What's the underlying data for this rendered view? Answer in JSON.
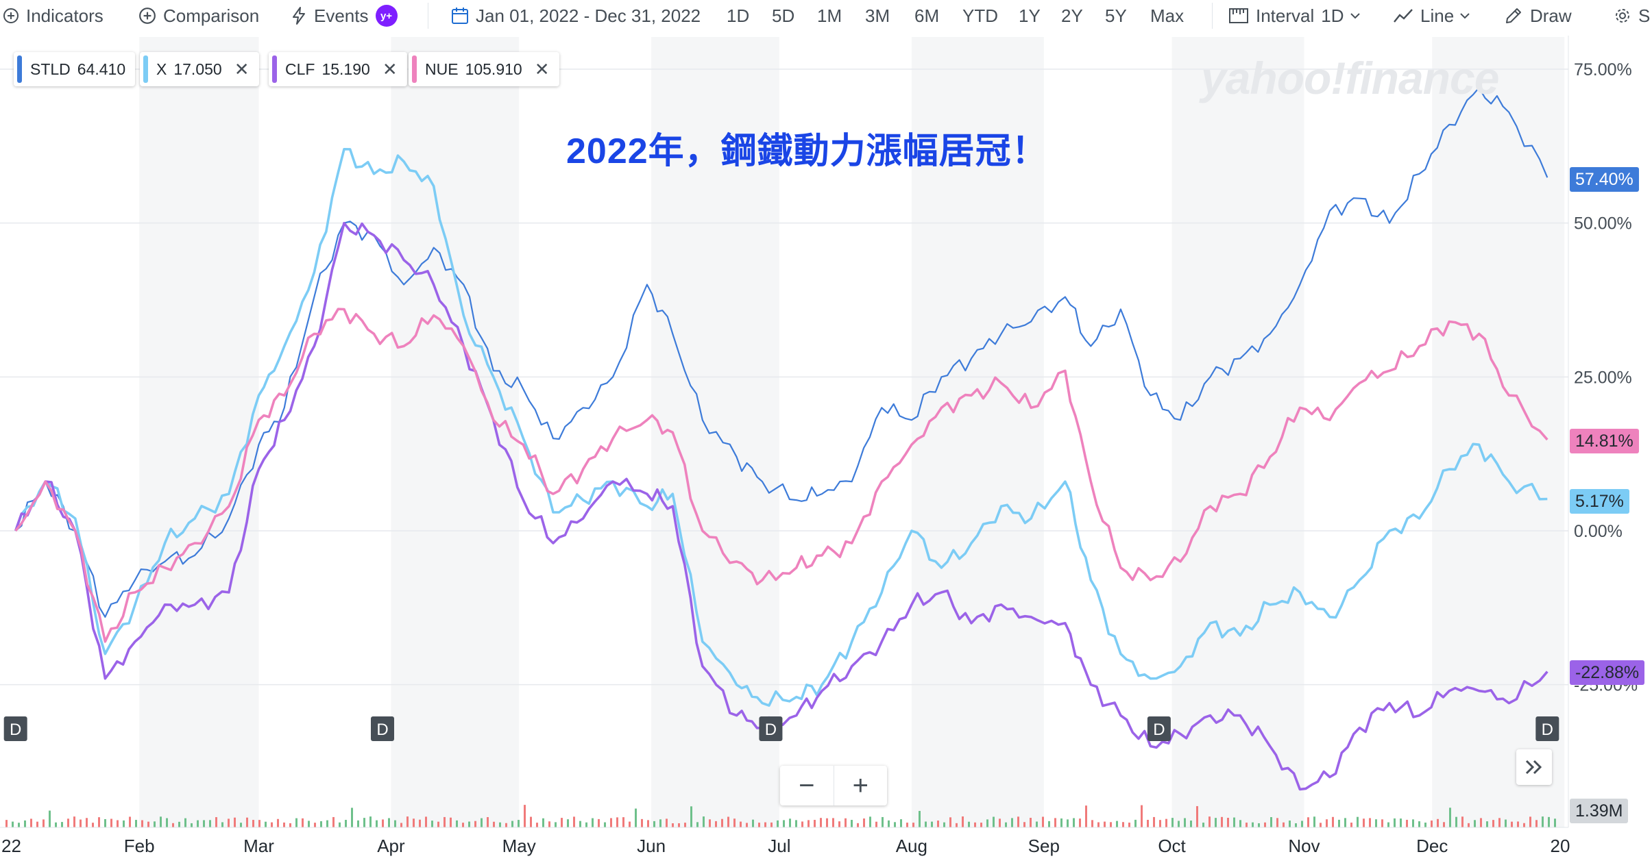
{
  "toolbar": {
    "indicators_label": "Indicators",
    "comparison_label": "Comparison",
    "events_label": "Events",
    "events_badge": "y+",
    "date_range": "Jan 01, 2022 - Dec 31, 2022",
    "ranges": [
      "1D",
      "5D",
      "1M",
      "3M",
      "6M",
      "YTD",
      "1Y",
      "2Y",
      "5Y",
      "Max"
    ],
    "interval_label": "Interval",
    "interval_value": "1D",
    "chart_type_label": "Line",
    "draw_label": "Draw",
    "settings_label": "S"
  },
  "legend": [
    {
      "symbol": "STLD",
      "value": "64.410",
      "color": "#3d7bd9",
      "closable": false
    },
    {
      "symbol": "X",
      "value": "17.050",
      "color": "#7cccf5",
      "closable": true
    },
    {
      "symbol": "CLF",
      "value": "15.190",
      "color": "#9b63e8",
      "closable": true
    },
    {
      "symbol": "NUE",
      "value": "105.910",
      "color": "#ee82bd",
      "closable": true
    }
  ],
  "annotation": "2022年，鋼鐵動力漲幅居冠！",
  "watermark": "yahoo!finance",
  "zoom": {
    "minus": "−",
    "plus": "+"
  },
  "value_tags": [
    {
      "label": "57.40%",
      "bg": "#3d7bd9",
      "fg": "#ffffff"
    },
    {
      "label": "14.81%",
      "bg": "#ee82bd",
      "fg": "#232a31"
    },
    {
      "label": "5.17%",
      "bg": "#7cccf5",
      "fg": "#232a31"
    },
    {
      "label": "-22.88%",
      "bg": "#9b63e8",
      "fg": "#232a31"
    },
    {
      "label": "1.39M",
      "bg": "#d3d7db",
      "fg": "#232a31"
    }
  ],
  "chart_data": {
    "type": "line",
    "title": "",
    "ylabel": "",
    "xlabel": "",
    "y_unit": "%",
    "ylim": [
      -47,
      75
    ],
    "y_ticks": [
      75,
      50,
      25,
      0,
      -25
    ],
    "y_tick_labels": [
      "75.00%",
      "50.00%",
      "25.00%",
      "0.00%",
      "-25.00%"
    ],
    "x_tick_labels": [
      "22",
      "Feb",
      "Mar",
      "Apr",
      "May",
      "Jun",
      "Jul",
      "Aug",
      "Sep",
      "Oct",
      "Nov",
      "Dec",
      "20"
    ],
    "x": [
      "2022-01-03",
      "2022-01-10",
      "2022-01-17",
      "2022-01-24",
      "2022-01-31",
      "2022-02-07",
      "2022-02-14",
      "2022-02-22",
      "2022-03-01",
      "2022-03-07",
      "2022-03-14",
      "2022-03-21",
      "2022-03-28",
      "2022-04-04",
      "2022-04-11",
      "2022-04-18",
      "2022-04-25",
      "2022-05-02",
      "2022-05-09",
      "2022-05-16",
      "2022-05-23",
      "2022-05-31",
      "2022-06-06",
      "2022-06-13",
      "2022-06-21",
      "2022-06-27",
      "2022-07-05",
      "2022-07-11",
      "2022-07-18",
      "2022-07-25",
      "2022-08-01",
      "2022-08-08",
      "2022-08-15",
      "2022-08-22",
      "2022-08-29",
      "2022-09-06",
      "2022-09-12",
      "2022-09-19",
      "2022-09-26",
      "2022-10-03",
      "2022-10-10",
      "2022-10-17",
      "2022-10-24",
      "2022-10-31",
      "2022-11-07",
      "2022-11-14",
      "2022-11-21",
      "2022-11-28",
      "2022-12-05",
      "2022-12-12",
      "2022-12-19",
      "2022-12-28"
    ],
    "series": [
      {
        "name": "STLD",
        "color": "#3d7bd9",
        "values": [
          0,
          8,
          0,
          -14,
          -8,
          -5,
          -4,
          2,
          14,
          20,
          38,
          50,
          48,
          40,
          46,
          40,
          26,
          23,
          15,
          20,
          25,
          40,
          32,
          18,
          12,
          8,
          5,
          6,
          8,
          20,
          18,
          25,
          28,
          32,
          34,
          38,
          30,
          36,
          22,
          18,
          25,
          28,
          32,
          40,
          52,
          54,
          50,
          58,
          66,
          72,
          68,
          57.4
        ]
      },
      {
        "name": "X",
        "color": "#7cccf5",
        "values": [
          0,
          8,
          2,
          -20,
          -12,
          -2,
          2,
          6,
          22,
          30,
          42,
          62,
          58,
          60,
          56,
          35,
          25,
          15,
          3,
          5,
          8,
          4,
          6,
          -18,
          -25,
          -28,
          -27,
          -25,
          -18,
          -10,
          0,
          -6,
          -2,
          4,
          2,
          8,
          -8,
          -20,
          -24,
          -22,
          -15,
          -17,
          -12,
          -10,
          -14,
          -8,
          0,
          2,
          10,
          14,
          8,
          5.17
        ]
      },
      {
        "name": "CLF",
        "color": "#9b63e8",
        "values": [
          0,
          8,
          0,
          -24,
          -18,
          -12,
          -12,
          -10,
          10,
          18,
          30,
          50,
          48,
          44,
          40,
          30,
          18,
          5,
          -2,
          2,
          8,
          6,
          4,
          -22,
          -30,
          -32,
          -30,
          -26,
          -22,
          -18,
          -12,
          -10,
          -15,
          -12,
          -14,
          -15,
          -25,
          -30,
          -35,
          -33,
          -30,
          -30,
          -35,
          -42,
          -40,
          -32,
          -28,
          -30,
          -26,
          -26,
          -28,
          -22.88
        ]
      },
      {
        "name": "NUE",
        "color": "#ee82bd",
        "values": [
          0,
          8,
          0,
          -18,
          -10,
          -6,
          -2,
          4,
          18,
          22,
          32,
          36,
          32,
          30,
          35,
          30,
          18,
          14,
          6,
          10,
          15,
          18,
          16,
          0,
          -5,
          -8,
          -6,
          -4,
          -2,
          8,
          14,
          20,
          22,
          24,
          20,
          26,
          8,
          -6,
          -8,
          -5,
          4,
          6,
          12,
          20,
          18,
          24,
          26,
          30,
          34,
          32,
          22,
          14.81
        ]
      }
    ],
    "volume_unit": "M",
    "volume_last": 1.39,
    "event_markers": [
      {
        "date": "2022-01-03",
        "label": "D"
      },
      {
        "date": "2022-03-30",
        "label": "D"
      },
      {
        "date": "2022-06-29",
        "label": "D"
      },
      {
        "date": "2022-09-28",
        "label": "D"
      },
      {
        "date": "2022-12-28",
        "label": "D"
      }
    ],
    "grid": true,
    "legend_position": "top-left"
  }
}
